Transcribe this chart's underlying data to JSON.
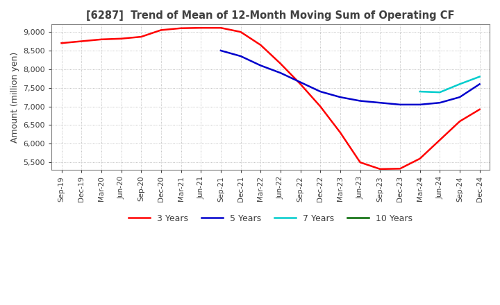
{
  "title": "[6287]  Trend of Mean of 12-Month Moving Sum of Operating CF",
  "ylabel": "Amount (million yen)",
  "title_color": "#404040",
  "background_color": "#ffffff",
  "grid_color": "#b0b0b0",
  "ylim": [
    5300,
    9200
  ],
  "yticks": [
    5500,
    6000,
    6500,
    7000,
    7500,
    8000,
    8500,
    9000
  ],
  "line_colors": {
    "3yr": "#ff0000",
    "5yr": "#0000cc",
    "7yr": "#00cccc",
    "10yr": "#006600"
  },
  "legend_labels": [
    "3 Years",
    "5 Years",
    "7 Years",
    "10 Years"
  ],
  "x_labels": [
    "Sep-19",
    "Dec-19",
    "Mar-20",
    "Jun-20",
    "Sep-20",
    "Dec-20",
    "Mar-21",
    "Jun-21",
    "Sep-21",
    "Dec-21",
    "Mar-22",
    "Jun-22",
    "Sep-22",
    "Dec-22",
    "Mar-23",
    "Jun-23",
    "Sep-23",
    "Dec-23",
    "Mar-24",
    "Jun-24",
    "Sep-24",
    "Dec-24"
  ],
  "data_3yr": [
    8700,
    8750,
    8800,
    8820,
    8870,
    9050,
    9100,
    9110,
    9110,
    9000,
    8650,
    8150,
    7600,
    7000,
    6300,
    5500,
    5320,
    5330,
    5600,
    6100,
    6600,
    6920
  ],
  "data_5yr": [
    null,
    null,
    null,
    null,
    null,
    null,
    null,
    null,
    8500,
    8350,
    8100,
    7900,
    7650,
    7400,
    7250,
    7150,
    7100,
    7050,
    7050,
    7100,
    7250,
    7600
  ],
  "data_7yr": [
    null,
    null,
    null,
    null,
    null,
    null,
    null,
    null,
    null,
    null,
    null,
    null,
    null,
    null,
    null,
    null,
    null,
    null,
    7400,
    7380,
    7600,
    7800
  ],
  "data_10yr": []
}
